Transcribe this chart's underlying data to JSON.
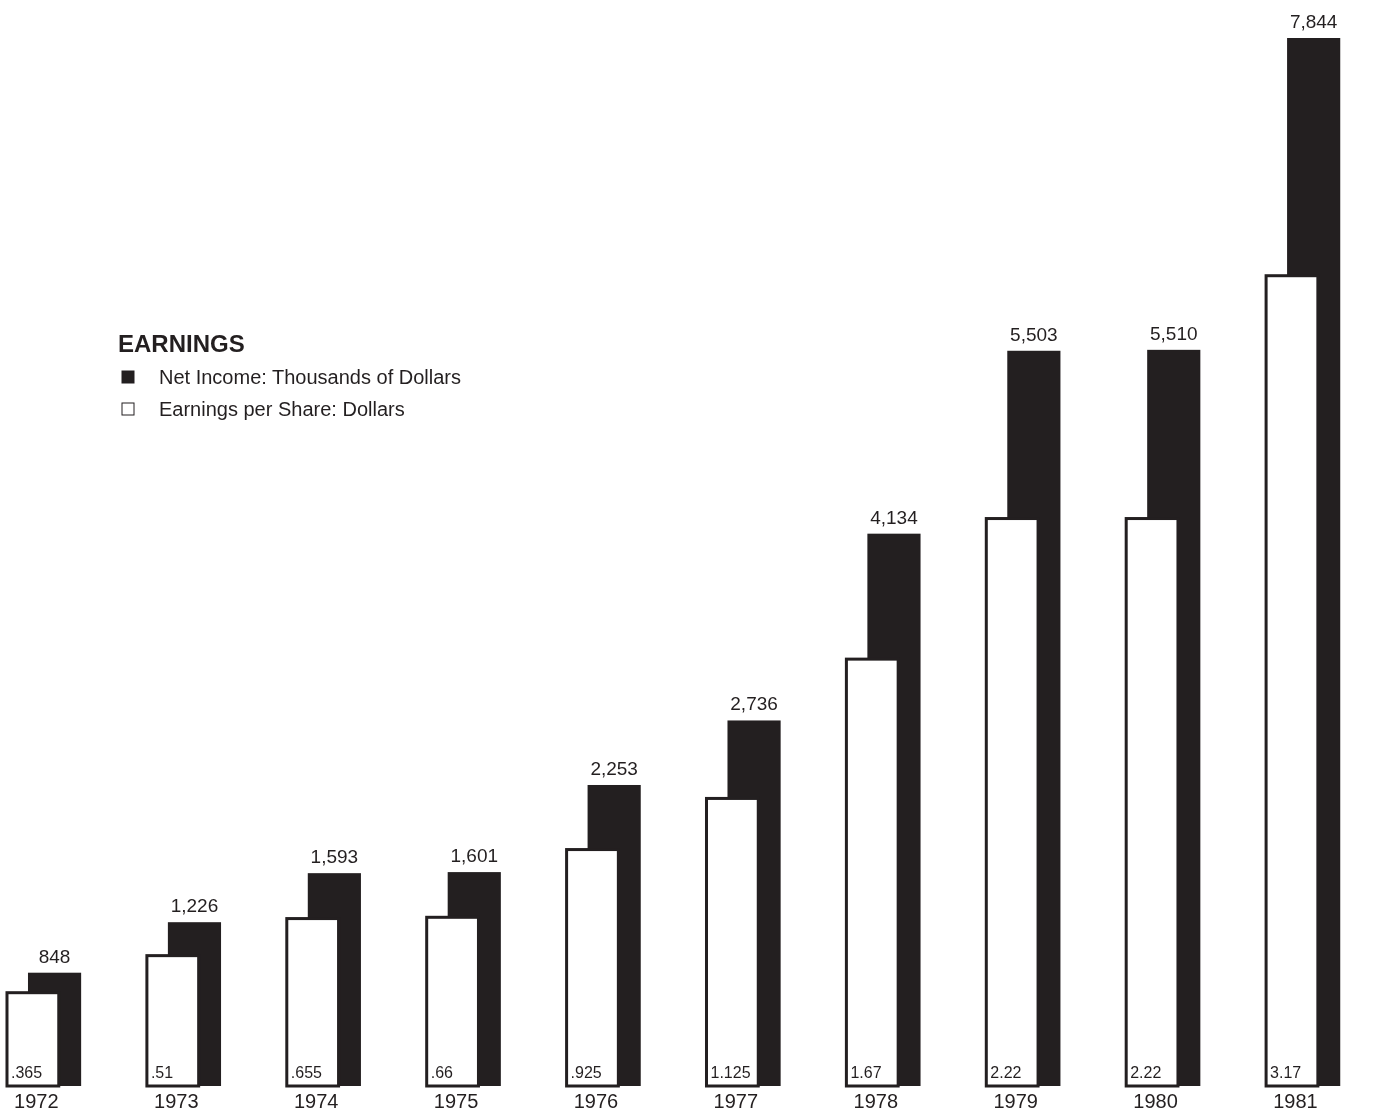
{
  "chart_data": {
    "type": "bar",
    "title": "EARNINGS",
    "categories": [
      "1972",
      "1973",
      "1974",
      "1975",
      "1976",
      "1977",
      "1978",
      "1979",
      "1980",
      "1981"
    ],
    "series": [
      {
        "name": "Net Income: Thousands of Dollars",
        "color": "#231f20",
        "values": [
          848,
          1226,
          1593,
          1601,
          2253,
          2736,
          4134,
          5503,
          5510,
          7844
        ],
        "value_labels": [
          "848",
          "1,226",
          "1,593",
          "1,601",
          "2,253",
          "2,736",
          "4,134",
          "5,503",
          "5,510",
          "7,844"
        ]
      },
      {
        "name": "Earnings per Share: Dollars",
        "color": "#ffffff",
        "axis": "y2",
        "values": [
          0.365,
          0.51,
          0.655,
          0.66,
          0.925,
          1.125,
          1.67,
          2.22,
          2.22,
          3.17
        ],
        "value_labels": [
          ".365",
          ".51",
          ".655",
          ".66",
          ".925",
          "1.125",
          "1.67",
          "2.22",
          "2.22",
          "3.17"
        ]
      }
    ],
    "ylim": [
      0,
      7844
    ],
    "y2lim": [
      0,
      4.1
    ],
    "tick_labels": "x",
    "data_labels": true,
    "legend": "top left"
  }
}
